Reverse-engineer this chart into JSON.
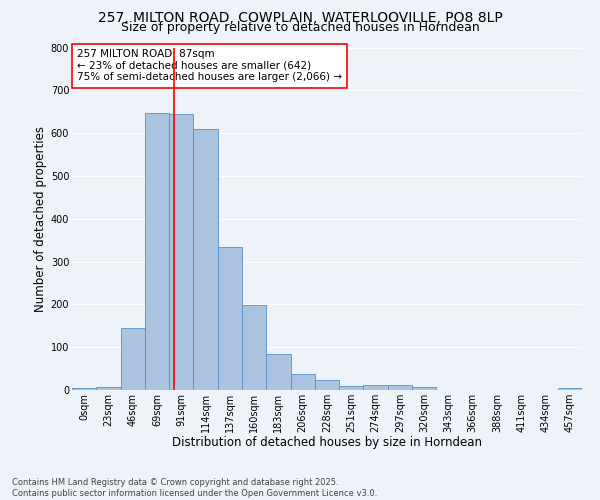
{
  "title_line1": "257, MILTON ROAD, COWPLAIN, WATERLOOVILLE, PO8 8LP",
  "title_line2": "Size of property relative to detached houses in Horndean",
  "xlabel": "Distribution of detached houses by size in Horndean",
  "ylabel": "Number of detached properties",
  "bin_labels": [
    "0sqm",
    "23sqm",
    "46sqm",
    "69sqm",
    "91sqm",
    "114sqm",
    "137sqm",
    "160sqm",
    "183sqm",
    "206sqm",
    "228sqm",
    "251sqm",
    "274sqm",
    "297sqm",
    "320sqm",
    "343sqm",
    "366sqm",
    "388sqm",
    "411sqm",
    "434sqm",
    "457sqm"
  ],
  "bar_heights": [
    5,
    8,
    145,
    648,
    645,
    610,
    335,
    198,
    83,
    38,
    24,
    10,
    12,
    11,
    8,
    0,
    0,
    0,
    0,
    0,
    5
  ],
  "bar_color": "#aac4e0",
  "bar_edge_color": "#5590c8",
  "vline_x": 3.72,
  "vline_color": "red",
  "annotation_text": "257 MILTON ROAD: 87sqm\n← 23% of detached houses are smaller (642)\n75% of semi-detached houses are larger (2,066) →",
  "annotation_box_color": "white",
  "annotation_box_edge": "red",
  "ylim": [
    0,
    800
  ],
  "yticks": [
    0,
    100,
    200,
    300,
    400,
    500,
    600,
    700,
    800
  ],
  "background_color": "#edf3f8",
  "grid_color": "white",
  "footer_text": "Contains HM Land Registry data © Crown copyright and database right 2025.\nContains public sector information licensed under the Open Government Licence v3.0.",
  "title_fontsize": 10,
  "subtitle_fontsize": 9,
  "axis_label_fontsize": 8.5,
  "tick_fontsize": 7,
  "annotation_fontsize": 7.5,
  "footer_fontsize": 6
}
